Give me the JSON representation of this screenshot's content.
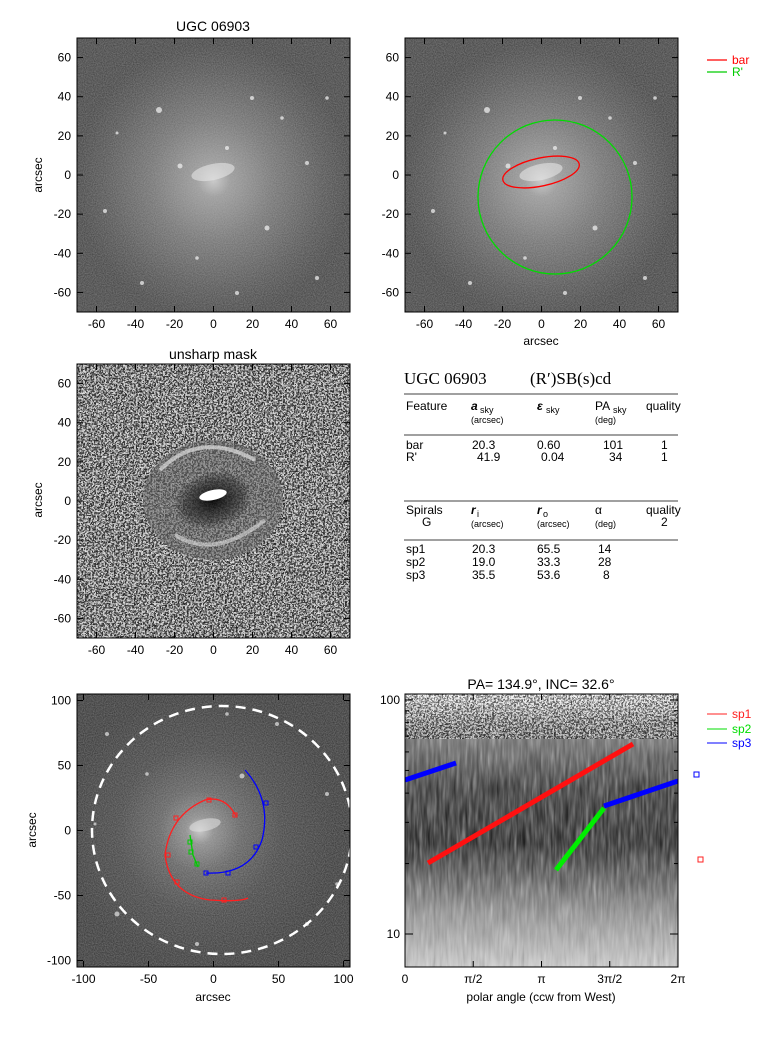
{
  "panel1": {
    "title": "UGC 06903",
    "ylabel": "arcsec",
    "yticks": [
      "60",
      "40",
      "20",
      "0",
      "-20",
      "-40",
      "-60"
    ],
    "xticks": [
      "-60",
      "-40",
      "-20",
      "0",
      "20",
      "40",
      "60"
    ]
  },
  "panel2": {
    "xlabel": "arcsec",
    "yticks": [
      "60",
      "40",
      "20",
      "0",
      "-20",
      "-40",
      "-60"
    ],
    "xticks": [
      "-60",
      "-40",
      "-20",
      "0",
      "20",
      "40",
      "60"
    ],
    "legend": [
      {
        "label": "bar",
        "color": "#ff0000"
      },
      {
        "label": "R'",
        "color": "#00cc00"
      }
    ]
  },
  "panel3": {
    "title": "unsharp mask",
    "ylabel": "arcsec",
    "yticks": [
      "60",
      "40",
      "20",
      "0",
      "-20",
      "-40",
      "-60"
    ],
    "xticks": [
      "-60",
      "-40",
      "-20",
      "0",
      "20",
      "40",
      "60"
    ]
  },
  "table": {
    "heading_name": "UGC 06903",
    "heading_class": "(R′)SB(s)cd",
    "features_header": {
      "c1": "Feature",
      "c2": "a",
      "c2sub": "sky",
      "c2unit": "(arcsec)",
      "c3": "ε",
      "c3sub": "sky",
      "c4": "PA",
      "c4sub": "sky",
      "c4unit": "(deg)",
      "c5": "quality"
    },
    "features": [
      {
        "name": "bar",
        "a": "20.3",
        "e": "0.60",
        "pa": "101",
        "q": "1"
      },
      {
        "name": "R'",
        "a": "41.9",
        "e": "0.04",
        "pa": "34",
        "q": "1"
      }
    ],
    "spirals_header": {
      "c1": "Spirals",
      "c1b": "G",
      "c2": "r",
      "c2sub": "i",
      "c2unit": "(arcsec)",
      "c3": "r",
      "c3sub": "o",
      "c3unit": "(arcsec)",
      "c4": "α",
      "c4unit": "(deg)",
      "c5": "quality",
      "c5b": "2"
    },
    "spirals": [
      {
        "name": "sp1",
        "ri": "20.3",
        "ro": "65.5",
        "alpha": "14"
      },
      {
        "name": "sp2",
        "ri": "19.0",
        "ro": "33.3",
        "alpha": "28"
      },
      {
        "name": "sp3",
        "ri": "35.5",
        "ro": "53.6",
        "alpha": "8"
      }
    ]
  },
  "panel5": {
    "xlabel": "arcsec",
    "ylabel": "arcsec",
    "yticks": [
      "100",
      "50",
      "0",
      "-50",
      "-100"
    ],
    "xticks": [
      "-100",
      "-50",
      "0",
      "50",
      "100"
    ]
  },
  "panel6": {
    "title": "PA= 134.9°, INC=  32.6°",
    "xlabel": "polar angle (ccw from West)",
    "yticks": [
      "100",
      "10"
    ],
    "xticks": [
      "0",
      "π/2",
      "π",
      "3π/2",
      "2π"
    ],
    "legend": [
      {
        "label": "sp1",
        "color": "#ff2020"
      },
      {
        "label": "sp2",
        "color": "#00dd00"
      },
      {
        "label": "sp3",
        "color": "#0000ff"
      }
    ]
  }
}
